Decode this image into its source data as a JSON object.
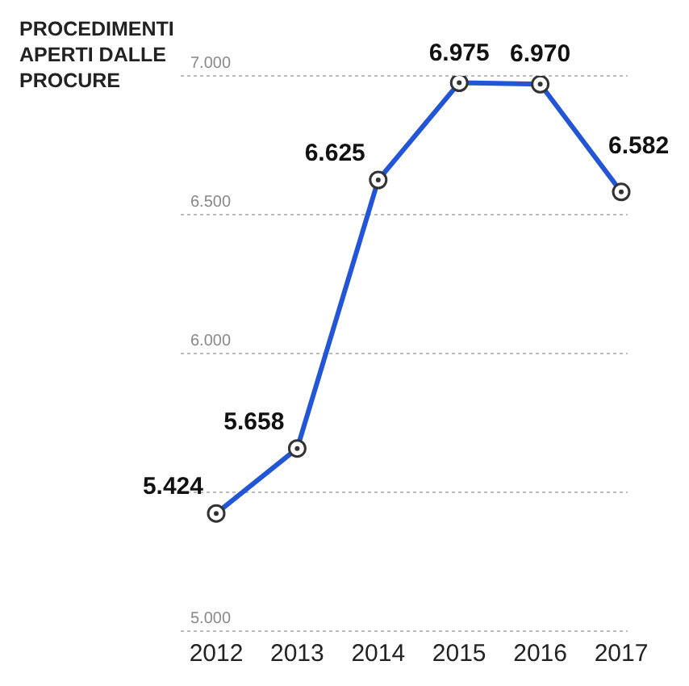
{
  "chart_data": {
    "type": "line",
    "title": "PROCEDIMENTI APERTI DALLE PROCURE",
    "categories": [
      "2012",
      "2013",
      "2014",
      "2015",
      "2016",
      "2017"
    ],
    "series": [
      {
        "color": "#2356d6",
        "values": [
          5424,
          5658,
          6625,
          6975,
          6970,
          6582
        ],
        "value_labels": [
          "5.424",
          "5.658",
          "6.625",
          "6.975",
          "6.970",
          "6.582"
        ]
      }
    ],
    "ylim": [
      5000,
      7000
    ],
    "yticks": [
      {
        "value": 5000,
        "label": "5.000"
      },
      {
        "value": 5500,
        "label": null
      },
      {
        "value": 6000,
        "label": "6.000"
      },
      {
        "value": 6500,
        "label": "6.500"
      },
      {
        "value": 7000,
        "label": "7.000"
      }
    ],
    "grid": "y",
    "marker": "circle",
    "line_style": "solid",
    "legend": false
  }
}
